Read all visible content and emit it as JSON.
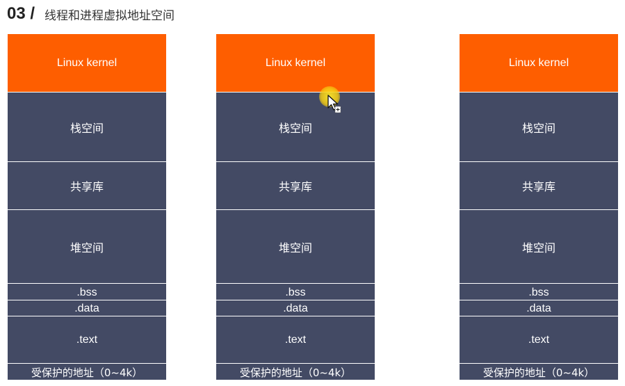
{
  "header": {
    "section_number": "03 /",
    "title": "线程和进程虚拟地址空间"
  },
  "columns": [
    {
      "segments": {
        "kernel": "Linux kernel",
        "stack": "栈空间",
        "shared_lib": "共享库",
        "heap": "堆空间",
        "bss": ".bss",
        "data": ".data",
        "text": ".text",
        "protected": "受保护的地址（0~4k）"
      }
    },
    {
      "segments": {
        "kernel": "Linux kernel",
        "stack": "栈空间",
        "shared_lib": "共享库",
        "heap": "堆空间",
        "bss": ".bss",
        "data": ".data",
        "text": ".text",
        "protected": "受保护的地址（0~4k）"
      }
    },
    {
      "segments": {
        "kernel": "Linux kernel",
        "stack": "栈空间",
        "shared_lib": "共享库",
        "heap": "堆空间",
        "bss": ".bss",
        "data": ".data",
        "text": ".text",
        "protected": "受保护的地址（0~4k）"
      }
    }
  ],
  "colors": {
    "kernel": "#fe5e00",
    "segment": "#434a64",
    "text": "#ffffff"
  },
  "icons": {
    "cursor": "pointer-cursor-icon"
  }
}
